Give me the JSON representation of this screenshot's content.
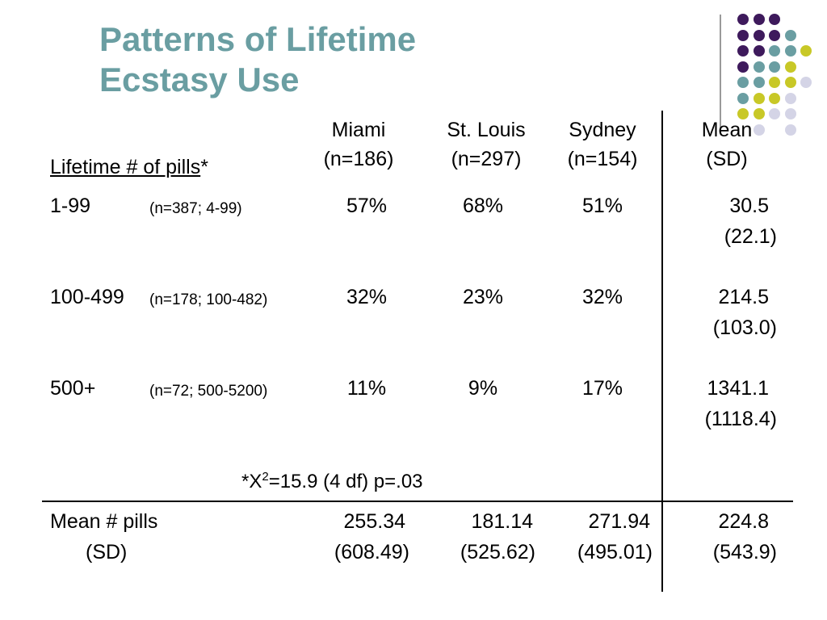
{
  "title": {
    "line1": "Patterns of Lifetime",
    "line2": "Ecstasy Use"
  },
  "colors": {
    "title": "#6a9ea2",
    "purple": "#3e1a5c",
    "teal": "#6a9ea2",
    "yellow": "#c8c827",
    "lavender": "#d4d4e6"
  },
  "table": {
    "row_header_label": "Lifetime # of pills",
    "row_header_asterisk": "*",
    "columns": [
      {
        "name": "Miami",
        "n": "(n=186)"
      },
      {
        "name": "St. Louis",
        "n": "(n=297)"
      },
      {
        "name": "Sydney",
        "n": "(n=154)"
      },
      {
        "name": "Mean",
        "n": "(SD)"
      }
    ],
    "rows": [
      {
        "label": "1-99",
        "sub": "(n=387; 4-99)",
        "miami": "57%",
        "stlouis": "68%",
        "sydney": "51%",
        "mean": "30.5",
        "sd": "(22.1)"
      },
      {
        "label": "100-499",
        "sub": "(n=178; 100-482)",
        "miami": "32%",
        "stlouis": "23%",
        "sydney": "32%",
        "mean": "214.5",
        "sd": "(103.0)"
      },
      {
        "label": "500+",
        "sub": "(n=72; 500-5200)",
        "miami": "11%",
        "stlouis": "9%",
        "sydney": "17%",
        "mean": "1341.1",
        "sd": "(1118.4)"
      }
    ],
    "chi": {
      "prefix": "*X",
      "sup": "2",
      "suffix": "=15.9 (4 df)  p=.03"
    },
    "summary": {
      "label": "Mean # pills",
      "sublabel": "(SD)",
      "miami": "255.34",
      "miami_sd": "(608.49)",
      "stlouis": "181.14",
      "stlouis_sd": "(525.62)",
      "sydney": "271.94",
      "sydney_sd": "(495.01)",
      "mean": "224.8",
      "mean_sd": "(543.9)"
    }
  }
}
